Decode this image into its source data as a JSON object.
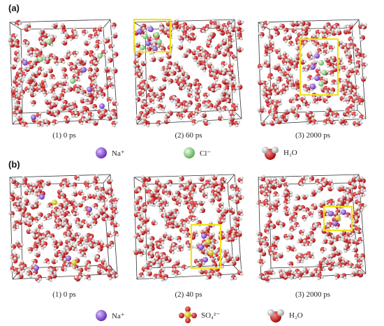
{
  "panels": [
    {
      "label": "(a)",
      "captions": [
        "(1) 0 ps",
        "(2) 60 ps",
        "(3) 2000 ps"
      ],
      "legend": [
        {
          "name": "Na⁺",
          "icon": "sodium-ion-icon",
          "color": "#8e5bd6"
        },
        {
          "name": "Cl⁻",
          "icon": "chloride-ion-icon",
          "color": "#8fd48c"
        },
        {
          "name": "H₂O",
          "icon": "water-molecule-icon",
          "color": "#d61b1b"
        }
      ]
    },
    {
      "label": "(b)",
      "captions": [
        "(1) 0 ps",
        "(2) 40 ps",
        "(3) 2000 ps"
      ],
      "legend": [
        {
          "name": "Na⁺",
          "icon": "sodium-ion-icon",
          "color": "#8e5bd6"
        },
        {
          "name": "SO₄²⁻",
          "icon": "sulfate-ion-icon",
          "color": "#e6d51a"
        },
        {
          "name": "H₂O",
          "icon": "water-molecule-icon",
          "color": "#d61b1b"
        }
      ]
    }
  ],
  "colors": {
    "water_oxygen": "#d61b1b",
    "water_hydrogen": "#f2f2f2",
    "sodium": "#8e5bd6",
    "chloride": "#8fd48c",
    "sulfur": "#e6d51a",
    "highlight_box": "#f2e21a",
    "box_edge": "#333333"
  }
}
